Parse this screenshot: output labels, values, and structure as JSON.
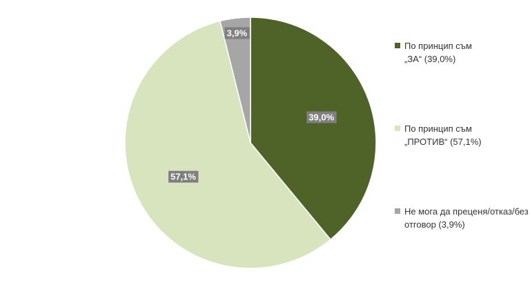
{
  "chart_data": {
    "type": "pie",
    "categories": [
      "По принцип съм „ЗА“ (39,0%)",
      "По принцип съм „ПРОТИВ“ (57,1%)",
      "Не мога да преценя/отказ/без отговор (3,9%)"
    ],
    "values": [
      39.0,
      57.1,
      3.9
    ],
    "value_labels": [
      "39,0%",
      "57,1%",
      "3,9%"
    ],
    "colors": [
      "#4f6228",
      "#d7e4bd",
      "#a6a6a6"
    ],
    "legend": "right"
  }
}
